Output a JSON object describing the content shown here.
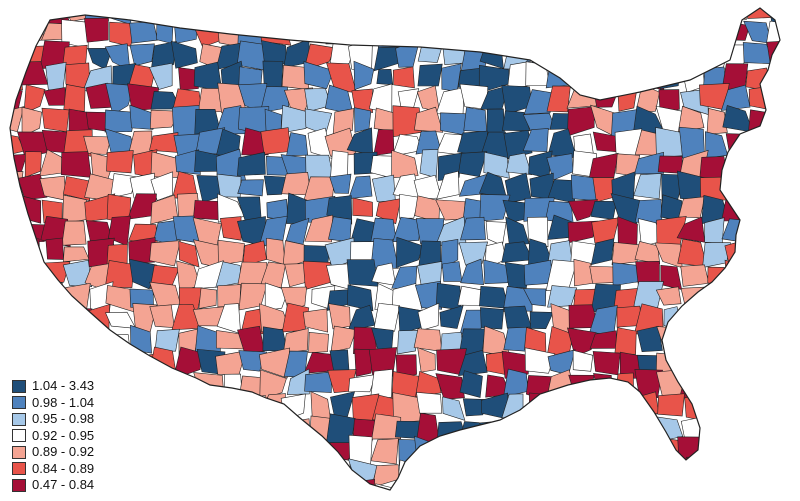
{
  "legend": {
    "items": [
      {
        "label": "1.04 - 3.43",
        "color": "#1f4e79"
      },
      {
        "label": "0.98 - 1.04",
        "color": "#4f82bd"
      },
      {
        "label": "0.95 - 0.98",
        "color": "#a6c8e8"
      },
      {
        "label": "0.92 - 0.95",
        "color": "#ffffff"
      },
      {
        "label": "0.89 - 0.92",
        "color": "#f4a493"
      },
      {
        "label": "0.84 - 0.89",
        "color": "#e8544a"
      },
      {
        "label": "0.47 - 0.84",
        "color": "#a50f37"
      }
    ]
  },
  "map": {
    "outline_color": "#222222",
    "region_fill_classes": [
      0,
      1,
      2,
      3,
      4,
      5,
      6
    ]
  }
}
